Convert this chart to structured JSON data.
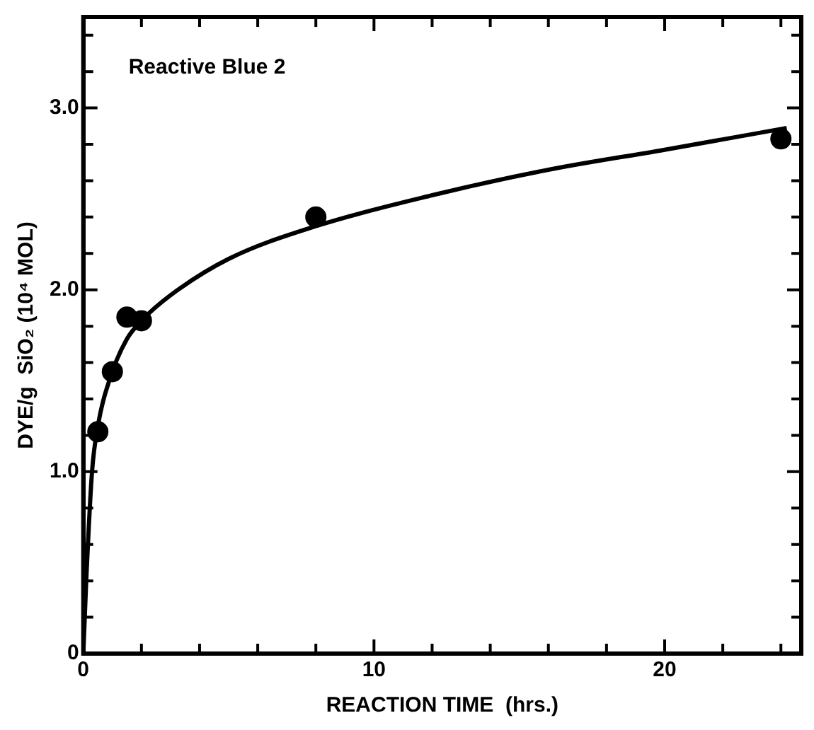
{
  "chart_data": {
    "type": "scatter",
    "xlabel": "REACTION TIME  (hrs.)",
    "ylabel": "DYE/g  SiO₂ (10⁴ MOL)",
    "annotations": [
      "Reactive Blue 2"
    ],
    "xlim": [
      0,
      24.7
    ],
    "ylim": [
      0,
      3.5
    ],
    "xticks": [
      0,
      {
        "value": 2,
        "label": null
      },
      {
        "value": 4,
        "label": null
      },
      {
        "value": 6,
        "label": null
      },
      {
        "value": 8,
        "label": null
      },
      10,
      {
        "value": 12,
        "label": null
      },
      {
        "value": 14,
        "label": null
      },
      {
        "value": 16,
        "label": null
      },
      {
        "value": 18,
        "label": null
      },
      20,
      {
        "value": 22,
        "label": null
      },
      {
        "value": 24,
        "label": null
      }
    ],
    "yticks": [
      0,
      {
        "value": 0.2,
        "label": null
      },
      {
        "value": 0.4,
        "label": null
      },
      {
        "value": 0.6,
        "label": null
      },
      {
        "value": 0.8,
        "label": null
      },
      {
        "value": 1,
        "label": "1.0"
      },
      {
        "value": 1.2,
        "label": null
      },
      {
        "value": 1.4,
        "label": null
      },
      {
        "value": 1.6,
        "label": null
      },
      {
        "value": 1.8,
        "label": null
      },
      {
        "value": 2,
        "label": "2.0"
      },
      {
        "value": 2.2,
        "label": null
      },
      {
        "value": 2.4,
        "label": null
      },
      {
        "value": 2.6,
        "label": null
      },
      {
        "value": 2.8,
        "label": null
      },
      {
        "value": 3,
        "label": "3.0"
      },
      {
        "value": 3.2,
        "label": null
      },
      {
        "value": 3.4,
        "label": null
      }
    ],
    "grid": false,
    "legend": false,
    "series": [
      {
        "type": "scatter",
        "color": "#000000",
        "marker": "circle",
        "x": [
          0.5,
          1,
          1.5,
          2,
          8,
          24
        ],
        "values": [
          1.22,
          1.55,
          1.85,
          1.83,
          2.4,
          2.83
        ]
      },
      {
        "type": "line",
        "color": "#000000",
        "marker": "none",
        "line_style": "solid",
        "x": [
          0,
          0.1,
          0.3,
          0.5,
          1,
          1.5,
          2,
          3,
          5,
          8,
          12,
          16,
          20,
          24.2
        ],
        "values": [
          0,
          0.4,
          1.0,
          1.25,
          1.55,
          1.73,
          1.83,
          1.97,
          2.17,
          2.35,
          2.52,
          2.66,
          2.77,
          2.89
        ]
      }
    ]
  }
}
